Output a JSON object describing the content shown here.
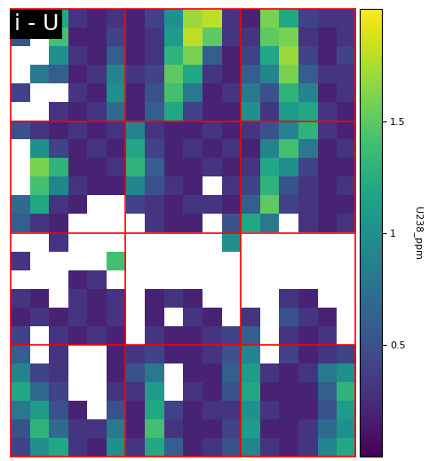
{
  "chart_data": {
    "type": "heatmap",
    "title": "i - U",
    "colorbar_label": "U238_ppm",
    "color": "viridis",
    "tick_labels": false,
    "colorbar_range": [
      0,
      2
    ],
    "colorbar_ticks": [
      0.5,
      1,
      1.5
    ],
    "cells": [
      [
        0.6,
        0.3,
        1.2,
        0.3,
        0.2,
        0.3,
        0.2,
        0.4,
        1.0,
        1.7,
        1.8,
        0.3,
        0.2,
        1.6,
        1.2,
        0.4,
        0.3,
        0.3
      ],
      [
        0.5,
        null,
        1.4,
        0.2,
        0.2,
        0.4,
        0.2,
        0.3,
        1.1,
        1.8,
        1.5,
        0.3,
        0.3,
        1.5,
        1.6,
        0.3,
        0.2,
        0.3
      ],
      [
        null,
        null,
        1.0,
        0.3,
        0.2,
        0.6,
        0.2,
        0.3,
        1.3,
        1.6,
        0.6,
        0.2,
        0.4,
        1.2,
        1.7,
        0.4,
        0.2,
        0.4
      ],
      [
        null,
        0.8,
        0.6,
        0.2,
        0.3,
        0.9,
        0.3,
        0.4,
        1.5,
        1.2,
        0.3,
        0.2,
        0.6,
        0.9,
        1.6,
        0.6,
        0.3,
        0.3
      ],
      [
        0.4,
        null,
        null,
        0.3,
        0.2,
        1.0,
        0.2,
        0.5,
        1.4,
        0.8,
        0.2,
        0.3,
        0.8,
        0.5,
        1.3,
        0.9,
        0.2,
        0.3
      ],
      [
        null,
        null,
        0.3,
        0.2,
        0.3,
        0.7,
        0.2,
        0.6,
        1.2,
        0.4,
        0.2,
        0.2,
        1.0,
        0.3,
        1.1,
        1.2,
        0.3,
        0.2
      ],
      [
        0.5,
        0.3,
        0.2,
        0.3,
        0.2,
        0.3,
        0.9,
        0.3,
        0.2,
        0.2,
        0.3,
        0.2,
        0.3,
        0.5,
        0.9,
        1.3,
        0.3,
        0.2
      ],
      [
        null,
        1.0,
        0.4,
        0.2,
        0.3,
        0.2,
        1.2,
        0.4,
        0.2,
        0.3,
        0.2,
        0.3,
        0.2,
        0.9,
        1.4,
        0.8,
        0.2,
        0.3
      ],
      [
        null,
        1.6,
        1.3,
        0.2,
        0.2,
        0.3,
        1.3,
        0.6,
        0.2,
        0.2,
        0.3,
        0.2,
        0.3,
        1.2,
        1.0,
        0.4,
        0.2,
        0.2
      ],
      [
        null,
        1.4,
        0.9,
        0.3,
        0.2,
        0.2,
        0.9,
        0.5,
        0.3,
        0.2,
        null,
        0.3,
        0.4,
        1.3,
        0.5,
        0.3,
        0.2,
        0.3
      ],
      [
        0.7,
        1.2,
        0.3,
        0.2,
        null,
        null,
        0.4,
        0.3,
        0.2,
        0.3,
        0.3,
        0.2,
        0.6,
        1.5,
        0.4,
        0.3,
        0.2,
        0.2
      ],
      [
        0.6,
        0.3,
        0.2,
        null,
        null,
        null,
        null,
        0.3,
        0.2,
        0.2,
        null,
        0.5,
        1.2,
        0.8,
        null,
        0.3,
        0.2,
        0.3
      ],
      [
        null,
        null,
        0.3,
        null,
        null,
        null,
        null,
        null,
        null,
        null,
        null,
        1.0,
        null,
        null,
        null,
        null,
        null,
        null
      ],
      [
        0.3,
        null,
        null,
        null,
        null,
        1.4,
        null,
        null,
        null,
        null,
        null,
        null,
        null,
        null,
        null,
        null,
        null,
        null
      ],
      [
        null,
        null,
        null,
        0.2,
        0.3,
        null,
        null,
        null,
        null,
        null,
        null,
        null,
        null,
        null,
        null,
        null,
        null,
        null
      ],
      [
        0.3,
        0.2,
        null,
        0.3,
        0.2,
        0.3,
        null,
        0.2,
        0.3,
        0.2,
        null,
        null,
        null,
        null,
        0.3,
        0.2,
        null,
        null
      ],
      [
        0.2,
        0.3,
        0.2,
        0.3,
        0.2,
        0.3,
        null,
        0.2,
        null,
        0.3,
        0.2,
        null,
        0.3,
        null,
        0.5,
        0.3,
        0.2,
        null
      ],
      [
        0.4,
        null,
        0.3,
        0.2,
        0.3,
        0.2,
        null,
        0.3,
        0.2,
        0.2,
        0.3,
        0.4,
        0.6,
        null,
        0.3,
        0.2,
        0.3,
        null
      ],
      [
        0.6,
        null,
        0.3,
        null,
        null,
        0.2,
        0.3,
        0.4,
        0.2,
        0.2,
        0.3,
        0.5,
        0.9,
        null,
        0.4,
        0.2,
        0.3,
        0.4
      ],
      [
        0.9,
        0.4,
        0.3,
        null,
        null,
        0.2,
        0.5,
        0.8,
        null,
        0.2,
        0.2,
        0.6,
        1.1,
        0.3,
        0.2,
        0.3,
        0.8,
        1.0
      ],
      [
        1.2,
        0.7,
        0.4,
        null,
        null,
        0.3,
        0.3,
        1.1,
        null,
        0.3,
        0.2,
        0.5,
        1.2,
        0.2,
        0.2,
        0.2,
        0.6,
        1.3
      ],
      [
        0.8,
        1.1,
        0.5,
        0.2,
        null,
        0.5,
        0.2,
        1.2,
        0.4,
        0.2,
        0.3,
        0.3,
        1.0,
        0.3,
        0.2,
        0.2,
        0.5,
        1.1
      ],
      [
        0.5,
        1.3,
        0.7,
        0.3,
        0.3,
        0.8,
        0.2,
        1.4,
        0.3,
        0.2,
        0.2,
        0.4,
        1.1,
        0.2,
        0.2,
        0.3,
        0.7,
        1.0
      ],
      [
        0.4,
        1.0,
        1.2,
        0.3,
        0.2,
        1.0,
        0.3,
        1.2,
        0.6,
        0.2,
        0.3,
        0.5,
        0.9,
        0.3,
        0.2,
        0.3,
        0.9,
        1.2
      ]
    ]
  }
}
